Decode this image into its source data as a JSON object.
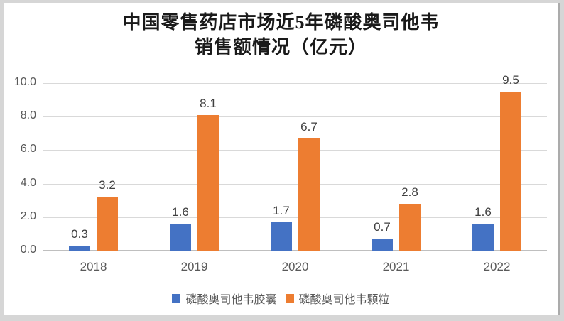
{
  "title": {
    "line1": "中国零售药店市场近5年磷酸奥司他韦",
    "line2": "销售额情况（亿元）"
  },
  "chart_data": {
    "type": "bar",
    "title": "中国零售药店市场近5年磷酸奥司他韦销售额情况（亿元）",
    "categories": [
      "2018",
      "2019",
      "2020",
      "2021",
      "2022"
    ],
    "series": [
      {
        "name": "磷酸奥司他韦胶囊",
        "color": "#4472c4",
        "values": [
          0.3,
          1.6,
          1.7,
          0.7,
          1.6
        ]
      },
      {
        "name": "磷酸奥司他韦颗粒",
        "color": "#ed7d31",
        "values": [
          3.2,
          8.1,
          6.7,
          2.8,
          9.5
        ]
      }
    ],
    "xlabel": "",
    "ylabel": "",
    "ylim": [
      0,
      10
    ],
    "ytick_step": 2,
    "ytick_labels": [
      "0.0",
      "2.0",
      "4.0",
      "6.0",
      "8.0",
      "10.0"
    ],
    "grid": true,
    "data_labels": true,
    "legend_position": "bottom"
  },
  "colors": {
    "frame": "#d6d6d6",
    "canvas": "#ffffff",
    "gridline": "#d9d9d9",
    "axis_line": "#bfbfbf",
    "tick_text": "#595959",
    "data_label_text": "#3f3f3f",
    "title_text": "#1a1a1a"
  }
}
